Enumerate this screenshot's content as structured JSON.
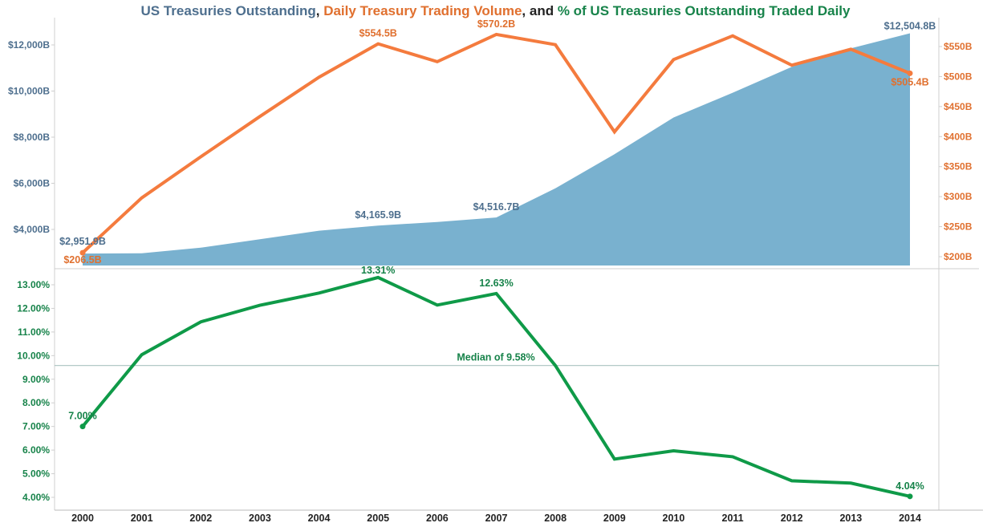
{
  "title": {
    "part1": "US Treasuries Outstanding",
    "sep1": ", ",
    "part2": "Daily Treasury Trading Volume",
    "sep2": ", and ",
    "part3": "% of US Treasuries Outstanding Traded Daily"
  },
  "colors": {
    "outstanding": "#79b1cf",
    "outstanding_text": "#4e6f8e",
    "volume": "#f47b3e",
    "volume_text": "#e0702f",
    "percent": "#0f9a48",
    "percent_text": "#17834a",
    "median_line": "#a9c2c0",
    "axis": "#cfcfcf"
  },
  "chart_data": [
    {
      "type": "area",
      "series": [
        {
          "name": "US Treasuries Outstanding",
          "values": [
            2951.9,
            2967.5,
            3205.3,
            3574.9,
            3943.6,
            4165.9,
            4322.9,
            4516.7,
            5783.6,
            7260.6,
            8853.0,
            9928.4,
            11046.1,
            11854.4,
            12504.8
          ]
        }
      ],
      "x": [
        2000,
        2001,
        2002,
        2003,
        2004,
        2005,
        2006,
        2007,
        2008,
        2009,
        2010,
        2011,
        2012,
        2013,
        2014
      ],
      "ylim": [
        2700,
        13000
      ],
      "y_ticks": [
        "$4,000B",
        "$6,000B",
        "$8,000B",
        "$10,000B",
        "$12,000B"
      ],
      "y_tick_values": [
        4000,
        6000,
        8000,
        10000,
        12000
      ],
      "labels": [
        {
          "x": 2000,
          "text": "$2,951.9B"
        },
        {
          "x": 2005,
          "text": "$4,165.9B"
        },
        {
          "x": 2007,
          "text": "$4,516.7B"
        },
        {
          "x": 2014,
          "text": "$12,504.8B"
        }
      ]
    },
    {
      "type": "line",
      "series": [
        {
          "name": "Daily Treasury Trading Volume",
          "values": [
            206.5,
            297.9,
            366.4,
            433.5,
            499.0,
            554.5,
            524.7,
            570.2,
            553.1,
            407.9,
            528.2,
            567.8,
            518.9,
            545.4,
            505.4
          ]
        }
      ],
      "x": [
        2000,
        2001,
        2002,
        2003,
        2004,
        2005,
        2006,
        2007,
        2008,
        2009,
        2010,
        2011,
        2012,
        2013,
        2014
      ],
      "ylim": [
        185,
        585
      ],
      "y_ticks": [
        "$200B",
        "$250B",
        "$300B",
        "$350B",
        "$400B",
        "$450B",
        "$500B",
        "$550B"
      ],
      "y_tick_values": [
        200,
        250,
        300,
        350,
        400,
        450,
        500,
        550
      ],
      "labels": [
        {
          "x": 2000,
          "text": "$206.5B"
        },
        {
          "x": 2005,
          "text": "$554.5B"
        },
        {
          "x": 2007,
          "text": "$570.2B"
        },
        {
          "x": 2014,
          "text": "$505.4B"
        }
      ]
    },
    {
      "type": "line",
      "series": [
        {
          "name": "% of US Treasuries Outstanding Traded Daily",
          "values": [
            7.0,
            10.04,
            11.43,
            12.13,
            12.65,
            13.31,
            12.14,
            12.63,
            9.58,
            5.62,
            5.97,
            5.72,
            4.7,
            4.6,
            4.04
          ]
        }
      ],
      "x": [
        2000,
        2001,
        2002,
        2003,
        2004,
        2005,
        2006,
        2007,
        2008,
        2009,
        2010,
        2011,
        2012,
        2013,
        2014
      ],
      "ylim": [
        3.9,
        13.45
      ],
      "y_ticks": [
        "4.00%",
        "5.00%",
        "6.00%",
        "7.00%",
        "8.00%",
        "9.00%",
        "10.00%",
        "11.00%",
        "12.00%",
        "13.00%"
      ],
      "y_tick_values": [
        4,
        5,
        6,
        7,
        8,
        9,
        10,
        11,
        12,
        13
      ],
      "labels": [
        {
          "x": 2000,
          "text": "7.00%"
        },
        {
          "x": 2005,
          "text": "13.31%"
        },
        {
          "x": 2007,
          "text": "12.63%"
        },
        {
          "x": 2014,
          "text": "4.04%"
        }
      ],
      "median": {
        "value": 9.58,
        "label": "Median of 9.58%"
      }
    }
  ],
  "x_axis_labels": [
    "2000",
    "2001",
    "2002",
    "2003",
    "2004",
    "2005",
    "2006",
    "2007",
    "2008",
    "2009",
    "2010",
    "2011",
    "2012",
    "2013",
    "2014"
  ]
}
